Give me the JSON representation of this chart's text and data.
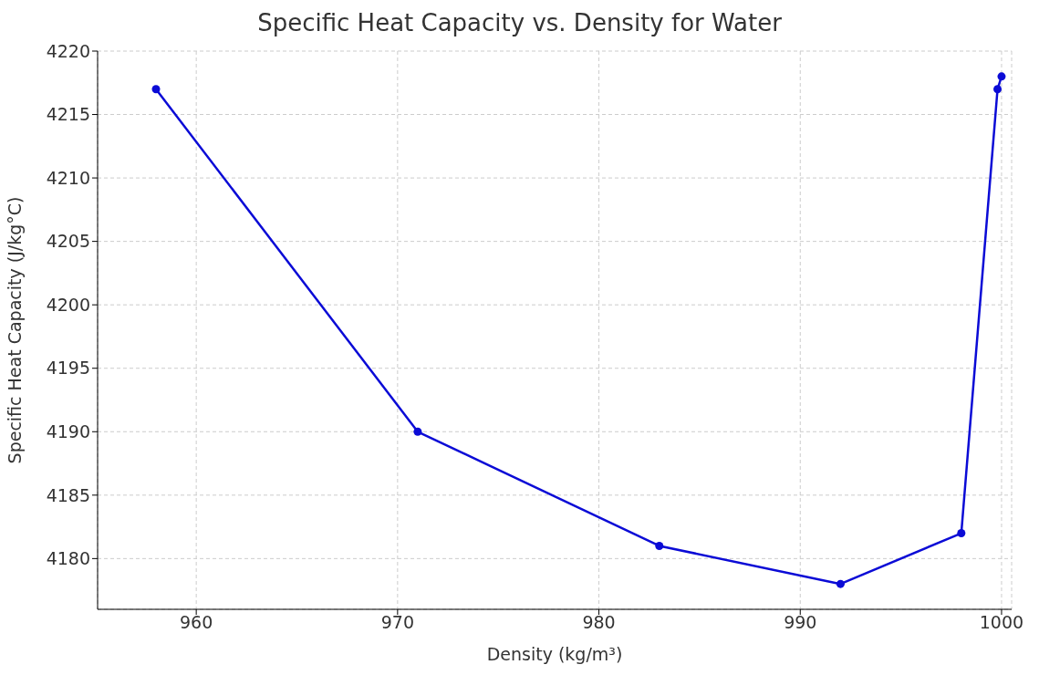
{
  "chart_data": {
    "type": "line",
    "title": "Specific Heat Capacity vs. Density for Water",
    "xlabel": "Density (kg/m³)",
    "ylabel": "Specific Heat Capacity (J/kg°C)",
    "x": [
      958,
      971,
      983,
      992,
      998,
      999.8,
      1000
    ],
    "series": [
      {
        "color": "#0b0bd6",
        "values": [
          4217,
          4190,
          4181,
          4178,
          4182,
          4217,
          4218
        ]
      }
    ],
    "xlim": [
      955.1,
      1000.5
    ],
    "xticks": [
      960,
      970,
      980,
      990,
      1000
    ],
    "ylim": [
      4176,
      4220
    ],
    "yticks": [
      4180,
      4185,
      4190,
      4195,
      4200,
      4205,
      4210,
      4215,
      4220
    ],
    "grid": true,
    "marker": "circle",
    "line_style": "solid"
  }
}
